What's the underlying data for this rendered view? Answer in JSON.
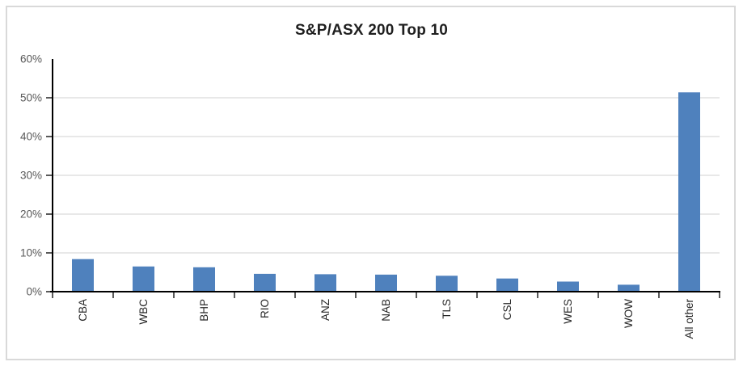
{
  "chart_data": {
    "type": "bar",
    "title": "S&P/ASX 200 Top 10",
    "categories": [
      "CBA",
      "WBC",
      "BHP",
      "RIO",
      "ANZ",
      "NAB",
      "TLS",
      "CSL",
      "WES",
      "WOW",
      "All other"
    ],
    "values": [
      8.4,
      6.5,
      6.3,
      4.6,
      4.5,
      4.4,
      4.1,
      3.4,
      2.6,
      1.8,
      51.4
    ],
    "value_unit": "percent",
    "xlabel": "",
    "ylabel": "",
    "ylim": [
      0,
      60
    ],
    "y_ticks": [
      {
        "value": 0,
        "label": "0%"
      },
      {
        "value": 10,
        "label": "10%"
      },
      {
        "value": 20,
        "label": "20%"
      },
      {
        "value": 30,
        "label": "30%"
      },
      {
        "value": 40,
        "label": "40%"
      },
      {
        "value": 50,
        "label": "50%"
      },
      {
        "value": 60,
        "label": "60%"
      }
    ],
    "gridline_values": [
      10,
      20,
      30,
      40,
      50
    ],
    "grid": "horizontal-major",
    "legend": "none",
    "x_label_rotation": "rotate-up-90",
    "colors": {
      "bar": "#4F81BD",
      "gridline": "#D9D9D9",
      "axis": "#000000",
      "y_label": "#595959",
      "x_label": "#262626",
      "title": "#1F1F1F",
      "chart_border": "#D9D9D9",
      "background": "#FFFFFF"
    }
  }
}
